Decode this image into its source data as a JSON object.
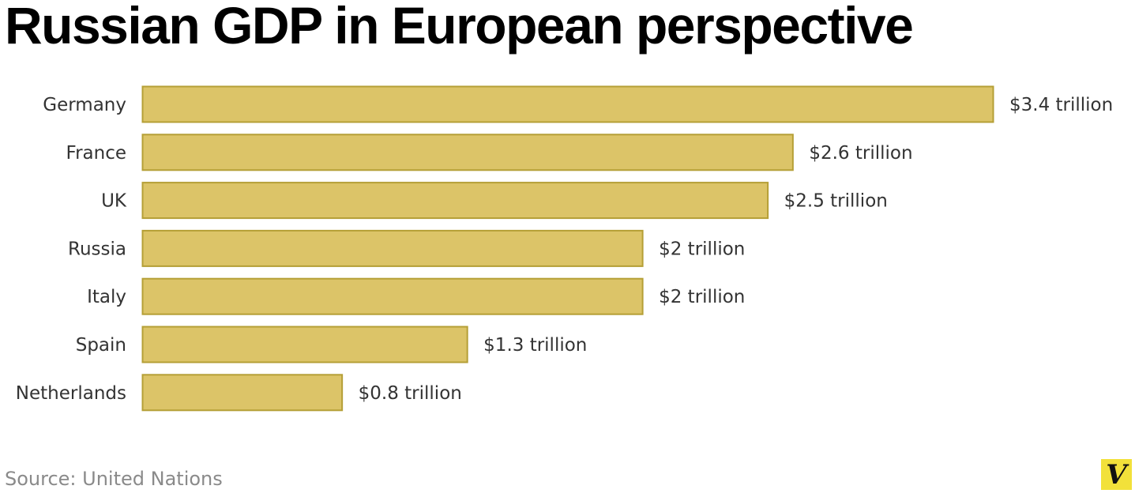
{
  "chart_data": {
    "type": "bar",
    "orientation": "horizontal",
    "title": "Russian GDP in European perspective",
    "categories": [
      "Germany",
      "France",
      "UK",
      "Russia",
      "Italy",
      "Spain",
      "Netherlands"
    ],
    "values": [
      3.4,
      2.6,
      2.5,
      2.0,
      2.0,
      1.3,
      0.8
    ],
    "value_labels": [
      "$3.4 trillion",
      "$2.6 trillion",
      "$2.5 trillion",
      "$2 trillion",
      "$2 trillion",
      "$1.3 trillion",
      "$0.8 trillion"
    ],
    "unit": "trillion USD",
    "xlim": [
      0,
      3.4
    ],
    "grid": false,
    "bar_color": "#dcc468",
    "bar_stroke": "#b59f36",
    "source": "Source: United Nations"
  },
  "branding": {
    "logo_letter": "V",
    "logo_color": "#f2e13a"
  }
}
